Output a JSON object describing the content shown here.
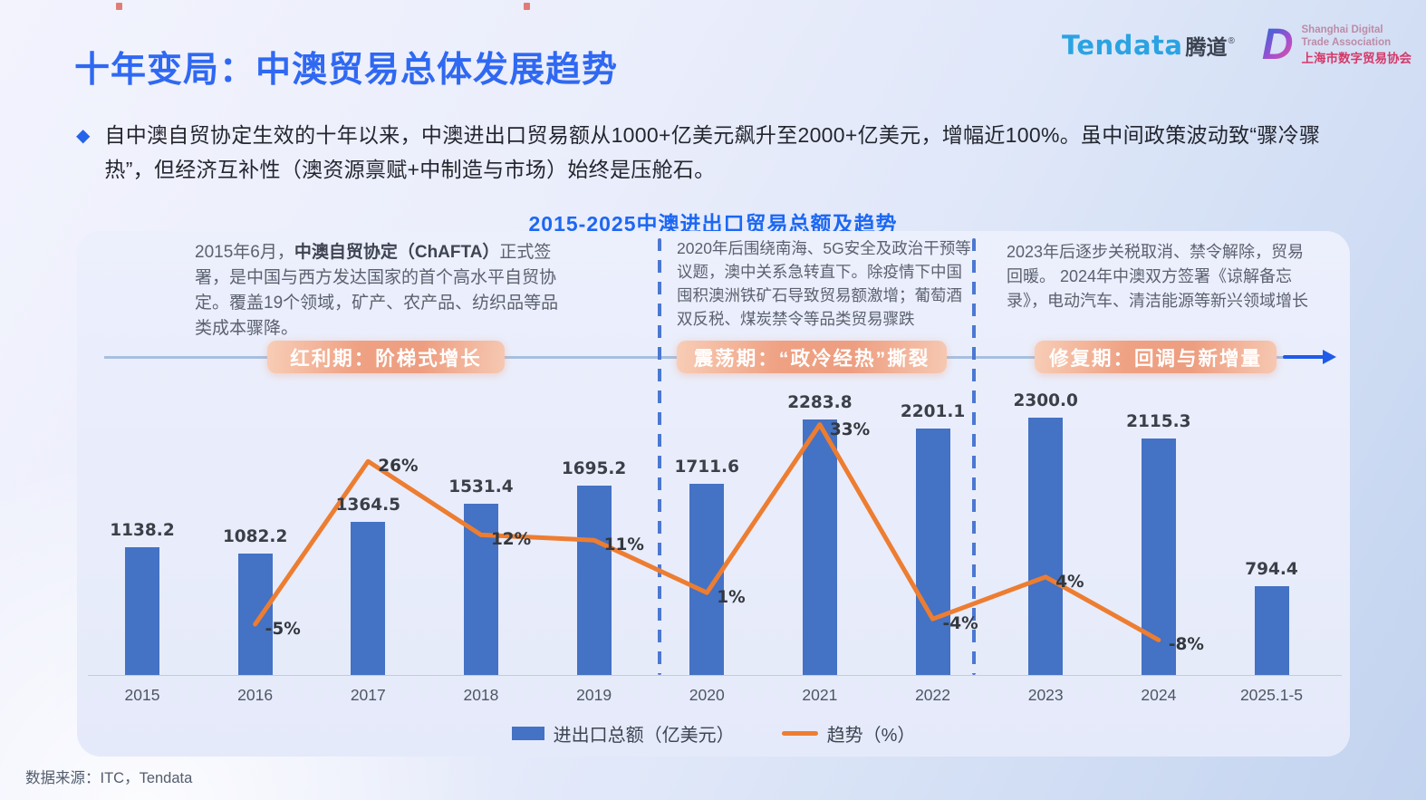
{
  "header": {
    "title": "十年变局：中澳贸易总体发展趋势",
    "tendata": {
      "name": "Tendata",
      "cn": "腾道",
      "reg": "®"
    },
    "sdta": {
      "letter": "D",
      "en1": "Shanghai Digital",
      "en2": "Trade Association",
      "cn": "上海市数字贸易协会"
    }
  },
  "intro": {
    "bullet": "◆",
    "text": "自中澳自贸协定生效的十年以来，中澳进出口贸易额从1000+亿美元飙升至2000+亿美元，增幅近100%。虽中间政策波动致“骤冷骤热”，但经济互补性（澳资源禀赋+中制造与市场）始终是压舱石。"
  },
  "chart_title": "2015-2025中澳进出口贸易总额及趋势",
  "panel": {
    "notes": [
      {
        "prefix": "2015年6月，",
        "bold": "中澳自贸协定（ChAFTA）",
        "suffix": "正式签署，是中国与西方发达国家的首个高水平自贸协定。覆盖19个领域，矿产、农产品、纺织品等品类成本骤降。"
      },
      {
        "text": "2020年后围绕南海、5G安全及政治干预等议题，澳中关系急转直下。除疫情下中国囤积澳洲铁矿石导致贸易额激增；葡萄酒双反税、煤炭禁令等品类贸易骤跌"
      },
      {
        "text": "2023年后逐步关税取消、禁令解除，贸易回暖。 2024年中澳双方签署《谅解备忘录》，电动汽车、清洁能源等新兴领域增长"
      }
    ],
    "phases": [
      "红利期：阶梯式增长",
      "震荡期：“政冷经热”撕裂",
      "修复期：回调与新增量"
    ]
  },
  "chart_data": {
    "type": "bar+line",
    "title": "2015-2025中澳进出口贸易总额及趋势",
    "categories": [
      "2015",
      "2016",
      "2017",
      "2018",
      "2019",
      "2020",
      "2021",
      "2022",
      "2023",
      "2024",
      "2025.1-5"
    ],
    "series": [
      {
        "name": "进出口总额（亿美元）",
        "type": "bar",
        "color": "#4472c4",
        "values": [
          1138.2,
          1082.2,
          1364.5,
          1531.4,
          1695.2,
          1711.6,
          2283.8,
          2201.1,
          2300.0,
          2115.3,
          794.4
        ],
        "labels": [
          "1138.2",
          "1082.2",
          "1364.5",
          "1531.4",
          "1695.2",
          "1711.6",
          "2283.8",
          "2201.1",
          "2300.0",
          "2115.3",
          "794.4"
        ]
      },
      {
        "name": "趋势（%）",
        "type": "line",
        "color": "#ed7d31",
        "values": [
          null,
          -5,
          26,
          12,
          11,
          1,
          33,
          -4,
          4,
          -8,
          null
        ],
        "labels": [
          "",
          "-5%",
          "26%",
          "12%",
          "11%",
          "1%",
          "33%",
          "-4%",
          "4%",
          "-8%",
          ""
        ]
      }
    ],
    "ylim": [
      0,
      2500
    ],
    "grid": false,
    "legend_position": "bottom"
  },
  "source": "数据来源：ITC，Tendata"
}
